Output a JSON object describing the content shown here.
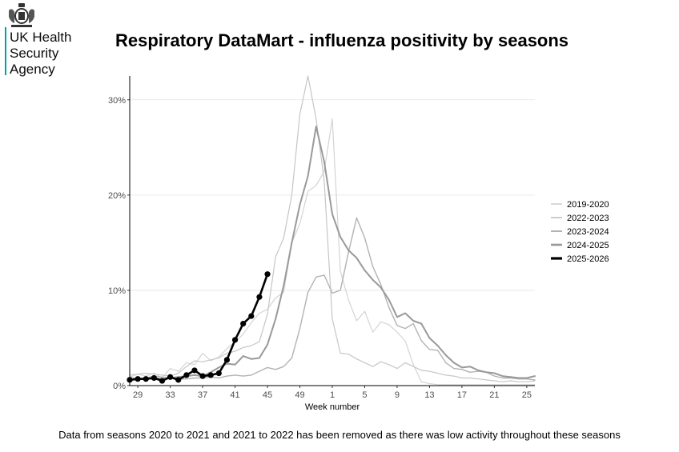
{
  "logo": {
    "lines": [
      "UK Health",
      "Security",
      "Agency"
    ],
    "icon": "royal-crest-icon",
    "accent_color": "#00a5a2"
  },
  "chart_data": {
    "type": "line",
    "title": "Respiratory DataMart - influenza positivity by seasons",
    "xlabel": "Week number",
    "ylabel": "",
    "x_tick_labels": [
      "29",
      "33",
      "37",
      "41",
      "45",
      "49",
      "1",
      "5",
      "9",
      "13",
      "17",
      "21",
      "25"
    ],
    "y_ticks": [
      0,
      10,
      20,
      30
    ],
    "y_tick_labels": [
      "0%",
      "10%",
      "20%",
      "30%"
    ],
    "ylim": [
      0,
      32.5
    ],
    "week_order": [
      28,
      29,
      30,
      31,
      32,
      33,
      34,
      35,
      36,
      37,
      38,
      39,
      40,
      41,
      42,
      43,
      44,
      45,
      46,
      47,
      48,
      49,
      50,
      51,
      52,
      1,
      2,
      3,
      4,
      5,
      6,
      7,
      8,
      9,
      10,
      11,
      12,
      13,
      14,
      15,
      16,
      17,
      18,
      19,
      20,
      21,
      22,
      23,
      24,
      25,
      26
    ],
    "grid": "horizontal",
    "legend_position": "right",
    "series": [
      {
        "name": "2019-2020",
        "color": "#d4d4d4",
        "width": 1.2,
        "markers": false,
        "values": [
          0.9,
          1.2,
          1.0,
          1.3,
          0.8,
          1.8,
          1.5,
          2.4,
          2.2,
          3.4,
          2.6,
          3.0,
          3.9,
          4.6,
          5.4,
          6.6,
          7.6,
          8.0,
          9.2,
          9.8,
          15.0,
          17.0,
          20.4,
          21.0,
          22.5,
          28.0,
          12.0,
          9.0,
          6.8,
          7.8,
          5.6,
          6.7,
          6.4,
          5.6,
          4.7,
          2.2,
          0.4,
          0.2,
          0.1,
          0.1,
          0.1,
          0.1,
          0.1,
          0.1,
          0.1,
          0.1,
          0.1,
          0.1,
          0.1,
          0.1,
          0.1
        ]
      },
      {
        "name": "2022-2023",
        "color": "#c6c6c6",
        "width": 1.2,
        "markers": false,
        "values": [
          1.1,
          1.2,
          1.3,
          1.2,
          1.1,
          1.0,
          1.3,
          2.0,
          2.6,
          2.5,
          2.7,
          2.9,
          3.4,
          3.6,
          4.0,
          4.2,
          4.6,
          7.5,
          13.5,
          15.5,
          20.0,
          28.5,
          32.5,
          28.0,
          21.5,
          7.0,
          3.4,
          3.3,
          2.8,
          2.4,
          2.0,
          2.5,
          2.2,
          1.8,
          2.4,
          2.0,
          1.6,
          1.5,
          1.3,
          1.1,
          1.0,
          0.8,
          0.8,
          0.7,
          0.6,
          0.5,
          0.4,
          0.5,
          0.4,
          0.4,
          0.5
        ]
      },
      {
        "name": "2023-2024",
        "color": "#b2b2b2",
        "width": 1.4,
        "markers": false,
        "values": [
          0.9,
          0.7,
          0.8,
          1.0,
          0.9,
          0.8,
          0.7,
          0.7,
          0.8,
          0.8,
          0.9,
          0.8,
          1.0,
          1.1,
          1.0,
          1.1,
          1.5,
          1.9,
          1.7,
          2.0,
          2.9,
          6.0,
          9.8,
          11.4,
          11.6,
          9.7,
          10.0,
          14.0,
          17.6,
          15.5,
          12.5,
          10.6,
          8.2,
          6.3,
          6.0,
          6.5,
          4.7,
          3.8,
          3.7,
          2.4,
          1.8,
          1.7,
          1.4,
          1.5,
          1.4,
          1.0,
          0.8,
          0.8,
          0.7,
          0.7,
          0.6
        ]
      },
      {
        "name": "2024-2025",
        "color": "#999999",
        "width": 2.0,
        "markers": false,
        "values": [
          0.6,
          0.7,
          0.8,
          0.8,
          0.7,
          0.8,
          0.9,
          1.0,
          1.1,
          1.0,
          1.4,
          1.9,
          2.3,
          2.2,
          3.1,
          2.8,
          2.9,
          4.3,
          7.0,
          10.5,
          15.0,
          19.0,
          22.0,
          27.2,
          23.5,
          18.0,
          15.6,
          14.2,
          13.4,
          12.1,
          11.1,
          10.3,
          9.0,
          7.2,
          7.6,
          6.8,
          6.5,
          5.0,
          4.2,
          3.2,
          2.4,
          1.9,
          2.0,
          1.6,
          1.4,
          1.3,
          1.0,
          0.9,
          0.8,
          0.8,
          1.0
        ]
      },
      {
        "name": "2025-2026",
        "color": "#000000",
        "width": 2.6,
        "markers": true,
        "values": [
          0.6,
          0.7,
          0.7,
          0.8,
          0.5,
          0.9,
          0.6,
          1.1,
          1.6,
          1.0,
          1.1,
          1.3,
          2.7,
          4.8,
          6.5,
          7.3,
          9.3,
          11.7
        ]
      }
    ]
  },
  "footnote": "Data from seasons 2020 to 2021 and 2021 to 2022 has been removed as there was low activity throughout these seasons"
}
